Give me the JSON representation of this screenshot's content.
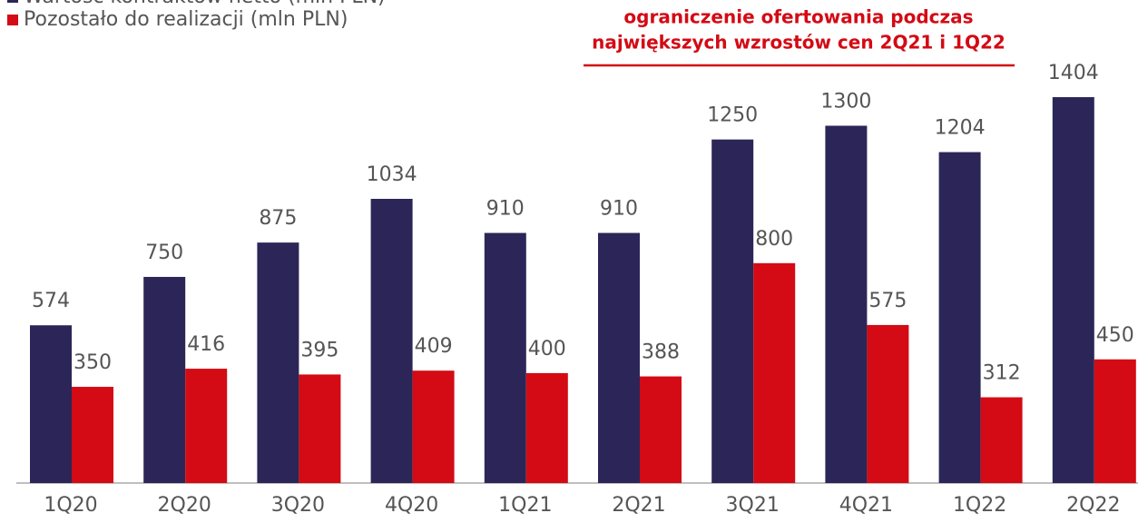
{
  "chart_data": {
    "type": "bar",
    "annotation": [
      "ograniczenie ofertowania podczas",
      "największych wzrostów cen 2Q21 i 1Q22"
    ],
    "categories": [
      "1Q20",
      "2Q20",
      "3Q20",
      "4Q20",
      "1Q21",
      "2Q21",
      "3Q21",
      "4Q21",
      "1Q22",
      "2Q22"
    ],
    "series": [
      {
        "name": "Wartość kontraktów netto (mln PLN)",
        "color": "#2b2657",
        "values": [
          574,
          750,
          875,
          1034,
          910,
          910,
          1250,
          1300,
          1204,
          1404
        ]
      },
      {
        "name": "Pozostało do realizacji (mln PLN)",
        "color": "#d40a14",
        "values": [
          350,
          416,
          395,
          409,
          400,
          388,
          800,
          575,
          312,
          450
        ]
      }
    ]
  }
}
